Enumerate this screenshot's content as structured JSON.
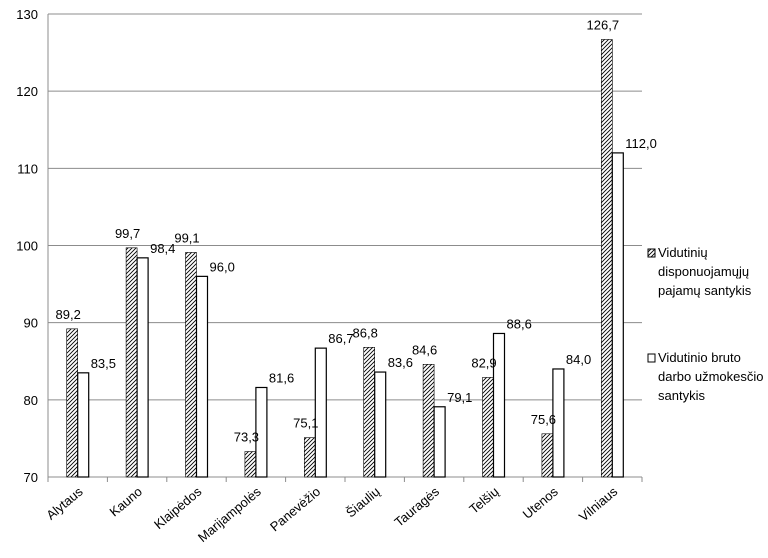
{
  "chart_data": {
    "type": "bar",
    "categories": [
      "Alytaus",
      "Kauno",
      "Klaipėdos",
      "Marijampolės",
      "Panevėžio",
      "Šiaulių",
      "Tauragės",
      "Telšių",
      "Utenos",
      "Vilniaus"
    ],
    "series": [
      {
        "name": "Vidutinių disponuojamųjų pajamų santykis",
        "values": [
          89.2,
          99.7,
          99.1,
          73.3,
          75.1,
          86.8,
          84.6,
          82.9,
          75.6,
          126.7
        ],
        "labels": [
          "89,2",
          "99,7",
          "99,1",
          "73,3",
          "75,1",
          "86,8",
          "84,6",
          "82,9",
          "75,6",
          "126,7"
        ],
        "fill": "hatched",
        "color": "#000000"
      },
      {
        "name": "Vidutinio bruto darbo užmokesčio santykis",
        "values": [
          83.5,
          98.4,
          96.0,
          81.6,
          86.7,
          83.6,
          79.1,
          88.6,
          84.0,
          112.0
        ],
        "labels": [
          "83,5",
          "98,4",
          "96,0",
          "81,6",
          "86,7",
          "83,6",
          "79,1",
          "88,6",
          "84,0",
          "112,0"
        ],
        "fill": "white",
        "color": "#000000"
      }
    ],
    "ylim": [
      70,
      130
    ],
    "yticks": [
      70,
      80,
      90,
      100,
      110,
      120,
      130
    ],
    "ytick_labels": [
      "70",
      "80",
      "90",
      "100",
      "110",
      "120",
      "130"
    ],
    "grid": true,
    "legend": {
      "position": "right",
      "entries": [
        [
          "Vidutinių",
          "disponuojamųjų",
          "pajamų santykis"
        ],
        [
          "Vidutinio bruto",
          "darbo užmokesčio",
          "santykis"
        ]
      ]
    },
    "title": "",
    "xlabel": "",
    "ylabel": ""
  }
}
